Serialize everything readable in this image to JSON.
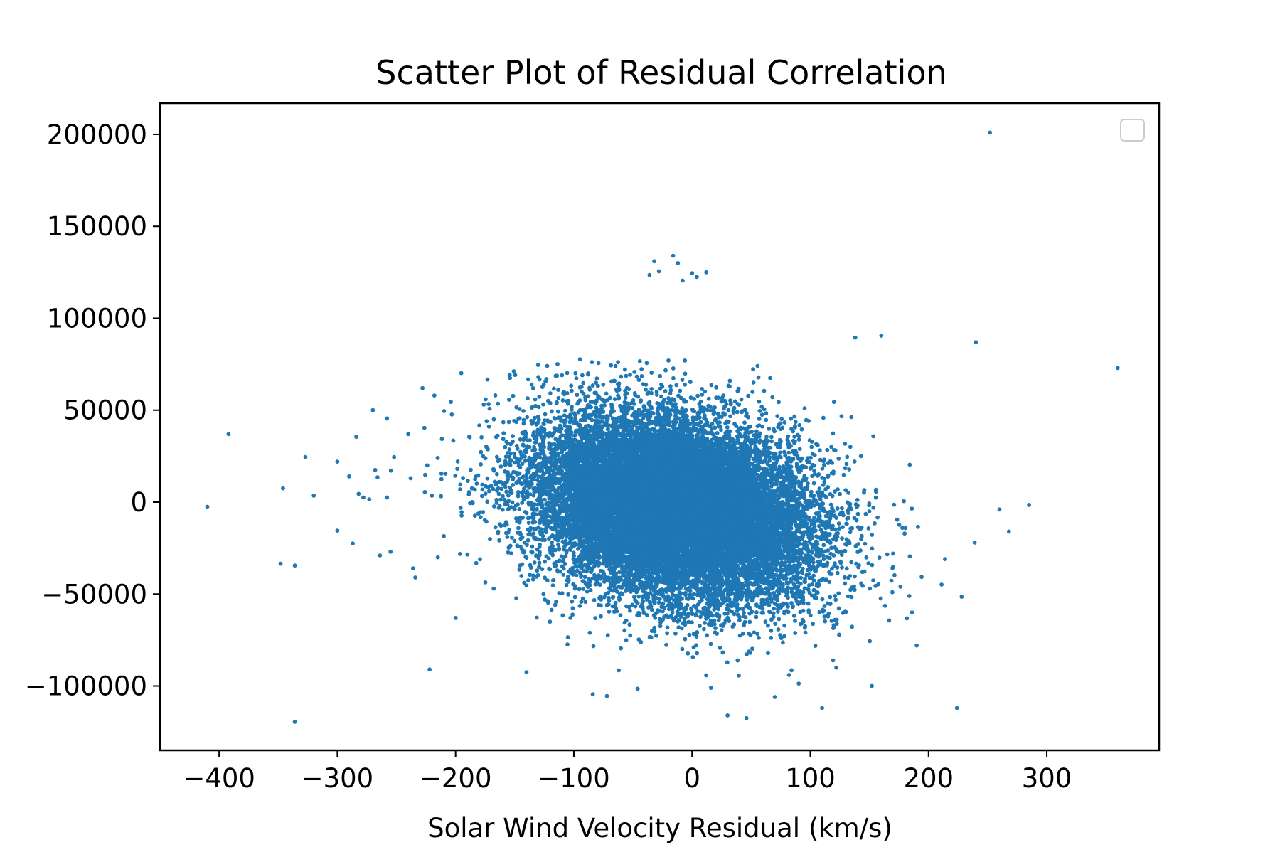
{
  "chart_data": {
    "type": "scatter",
    "title": "Scatter Plot of Residual Correlation",
    "xlabel": "Solar Wind Velocity Residual (km/s)",
    "ylabel": "",
    "xlim": [
      -450,
      395
    ],
    "ylim": [
      -135000,
      217000
    ],
    "x_ticks": [
      -400,
      -300,
      -200,
      -100,
      0,
      100,
      200,
      300
    ],
    "x_tick_labels": [
      "−400",
      "−300",
      "−200",
      "−100",
      "0",
      "100",
      "200",
      "300"
    ],
    "y_ticks": [
      -100000,
      -50000,
      0,
      50000,
      100000,
      150000,
      200000
    ],
    "y_tick_labels": [
      "−100000",
      "−50000",
      "0",
      "50000",
      "100000",
      "150000",
      "200000"
    ],
    "grid": false,
    "legend": {
      "placement": "top-right",
      "entries": []
    },
    "colors": {
      "marker": "#1f77b4",
      "axes": "#000000",
      "legend_border": "#cccccc"
    },
    "series": [
      {
        "color": "#1f77b4",
        "points": [
          [
            -410,
            -2500
          ],
          [
            -392,
            37000
          ],
          [
            -346,
            7500
          ],
          [
            -348,
            -33500
          ],
          [
            -336,
            -34500
          ],
          [
            -336,
            -119500
          ],
          [
            -327,
            24500
          ],
          [
            -320,
            3500
          ],
          [
            -300,
            22000
          ],
          [
            -300,
            -15500
          ],
          [
            -290,
            14000
          ],
          [
            -287,
            -22500
          ],
          [
            -284,
            35500
          ],
          [
            -282,
            4500
          ],
          [
            -278,
            2500
          ],
          [
            -273,
            1500
          ],
          [
            -270,
            50000
          ],
          [
            -268,
            17500
          ],
          [
            -266,
            13500
          ],
          [
            -264,
            -29000
          ],
          [
            -258,
            45500
          ],
          [
            -258,
            2500
          ],
          [
            -255,
            -27000
          ],
          [
            -252,
            24500
          ],
          [
            -240,
            37000
          ],
          [
            -238,
            13000
          ],
          [
            -236,
            -36000
          ],
          [
            -234,
            -41000
          ],
          [
            -228,
            62000
          ],
          [
            -226,
            5500
          ],
          [
            -224,
            20000
          ],
          [
            -222,
            -91000
          ],
          [
            -220,
            3500
          ],
          [
            -218,
            58000
          ],
          [
            -215,
            -30000
          ],
          [
            -212,
            15500
          ],
          [
            -210,
            -18500
          ],
          [
            -204,
            54500
          ],
          [
            -202,
            33500
          ],
          [
            -200,
            -63000
          ],
          [
            -196,
            9500
          ],
          [
            -190,
            -28500
          ],
          [
            -154,
            67500
          ],
          [
            -140,
            -92500
          ],
          [
            -130,
            68000
          ],
          [
            -110,
            69000
          ],
          [
            -105,
            -73500
          ],
          [
            -84,
            -104500
          ],
          [
            -72,
            -105500
          ],
          [
            -62,
            -91500
          ],
          [
            -46,
            -101500
          ],
          [
            -36,
            123500
          ],
          [
            -32,
            131000
          ],
          [
            -28,
            125500
          ],
          [
            -20,
            77000
          ],
          [
            -16,
            134000
          ],
          [
            -12,
            130000
          ],
          [
            -8,
            120500
          ],
          [
            -6,
            77000
          ],
          [
            0,
            124500
          ],
          [
            4,
            122500
          ],
          [
            12,
            125000
          ],
          [
            16,
            -101000
          ],
          [
            30,
            -116000
          ],
          [
            32,
            66000
          ],
          [
            46,
            -117500
          ],
          [
            52,
            65000
          ],
          [
            66,
            67500
          ],
          [
            70,
            -106000
          ],
          [
            82,
            -94000
          ],
          [
            110,
            -112000
          ],
          [
            120,
            54500
          ],
          [
            122,
            -90000
          ],
          [
            138,
            89500
          ],
          [
            152,
            -100000
          ],
          [
            160,
            90500
          ],
          [
            170,
            -28000
          ],
          [
            186,
            -60000
          ],
          [
            190,
            -78000
          ],
          [
            214,
            -31000
          ],
          [
            224,
            -112000
          ],
          [
            228,
            -51500
          ],
          [
            239,
            -22000
          ],
          [
            240,
            87000
          ],
          [
            252,
            201000
          ],
          [
            260,
            -4000
          ],
          [
            268,
            -16000
          ],
          [
            285,
            -1500
          ],
          [
            360,
            73000
          ]
        ],
        "core_cloud": {
          "x_mean": -15,
          "x_std": 58,
          "y_mean": -3000,
          "y_std": 24000,
          "xy_slope": -110,
          "count": 20000
        }
      }
    ]
  }
}
